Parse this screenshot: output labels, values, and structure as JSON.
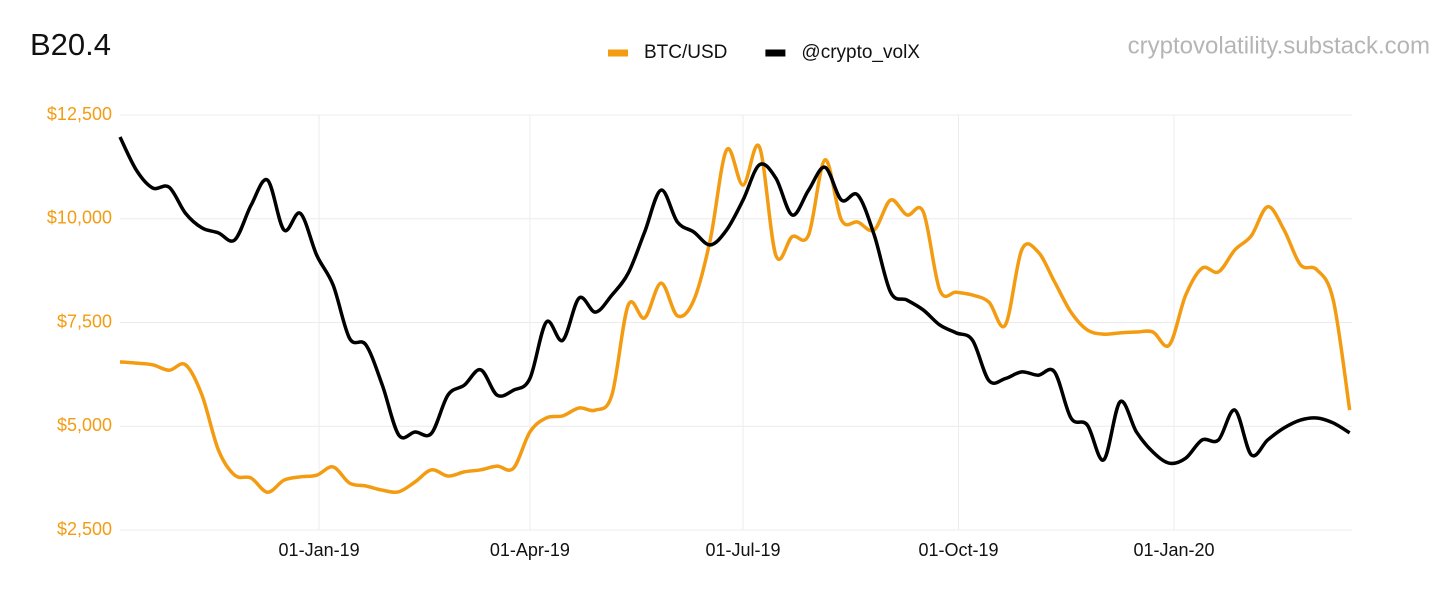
{
  "chart_data": {
    "type": "line",
    "title": "B20.4",
    "source": "cryptovolatility.substack.com",
    "legend": "top",
    "grid": true,
    "x": [
      "2018-10-08",
      "2018-10-15",
      "2018-10-22",
      "2018-10-29",
      "2018-11-05",
      "2018-11-12",
      "2018-11-19",
      "2018-11-26",
      "2018-12-03",
      "2018-12-10",
      "2018-12-17",
      "2018-12-24",
      "2018-12-31",
      "2019-01-07",
      "2019-01-14",
      "2019-01-21",
      "2019-01-28",
      "2019-02-04",
      "2019-02-11",
      "2019-02-18",
      "2019-02-25",
      "2019-03-04",
      "2019-03-11",
      "2019-03-18",
      "2019-03-25",
      "2019-04-01",
      "2019-04-08",
      "2019-04-15",
      "2019-04-22",
      "2019-04-29",
      "2019-05-06",
      "2019-05-13",
      "2019-05-20",
      "2019-05-27",
      "2019-06-03",
      "2019-06-10",
      "2019-06-17",
      "2019-06-24",
      "2019-07-01",
      "2019-07-08",
      "2019-07-15",
      "2019-07-22",
      "2019-07-29",
      "2019-08-05",
      "2019-08-12",
      "2019-08-19",
      "2019-08-26",
      "2019-09-02",
      "2019-09-09",
      "2019-09-16",
      "2019-09-23",
      "2019-09-30",
      "2019-10-07",
      "2019-10-14",
      "2019-10-21",
      "2019-10-28",
      "2019-11-04",
      "2019-11-11",
      "2019-11-18",
      "2019-11-25",
      "2019-12-02",
      "2019-12-09",
      "2019-12-16",
      "2019-12-23",
      "2019-12-30",
      "2020-01-06",
      "2020-01-13",
      "2020-01-20",
      "2020-01-27",
      "2020-02-03",
      "2020-02-10",
      "2020-02-17",
      "2020-02-24",
      "2020-03-02",
      "2020-03-09",
      "2020-03-16"
    ],
    "series": [
      {
        "name": "BTC/USD",
        "color": "#f39c12",
        "values": [
          6550,
          6520,
          6480,
          6350,
          6480,
          5750,
          4430,
          3820,
          3750,
          3410,
          3700,
          3780,
          3820,
          4020,
          3630,
          3560,
          3460,
          3420,
          3660,
          3950,
          3800,
          3900,
          3950,
          4040,
          3990,
          4860,
          5200,
          5250,
          5440,
          5390,
          5750,
          7920,
          7610,
          8450,
          7660,
          8040,
          9490,
          11660,
          10810,
          11730,
          9120,
          9570,
          9610,
          11420,
          9970,
          9920,
          9730,
          10450,
          10090,
          10160,
          8280,
          8230,
          8160,
          7990,
          7440,
          9250,
          9200,
          8480,
          7750,
          7320,
          7220,
          7250,
          7270,
          7270,
          6960,
          8160,
          8810,
          8720,
          9250,
          9590,
          10290,
          9730,
          8890,
          8770,
          8040,
          5390
        ]
      },
      {
        "name": "@crypto_volX",
        "color": "#000000",
        "values": [
          11970,
          11170,
          10740,
          10760,
          10130,
          9780,
          9660,
          9490,
          10330,
          10930,
          9730,
          10130,
          9120,
          8400,
          7120,
          6960,
          5990,
          4790,
          4860,
          4830,
          5750,
          5990,
          6360,
          5750,
          5870,
          6150,
          7510,
          7070,
          8090,
          7750,
          8160,
          8690,
          9680,
          10690,
          9920,
          9680,
          9370,
          9730,
          10450,
          11300,
          10980,
          10090,
          10690,
          11240,
          10450,
          10570,
          9610,
          8230,
          8040,
          7800,
          7440,
          7250,
          7070,
          6100,
          6150,
          6310,
          6230,
          6310,
          5200,
          5030,
          4190,
          5590,
          4860,
          4380,
          4110,
          4230,
          4670,
          4670,
          5390,
          4310,
          4670,
          4960,
          5150,
          5200,
          5080,
          4840
        ]
      }
    ],
    "xlim": [
      "2018-10-08",
      "2020-03-17"
    ],
    "xticks": [
      {
        "value": "2019-01-01",
        "label": "01-Jan-19"
      },
      {
        "value": "2019-04-01",
        "label": "01-Apr-19"
      },
      {
        "value": "2019-07-01",
        "label": "01-Jul-19"
      },
      {
        "value": "2019-10-01",
        "label": "01-Oct-19"
      },
      {
        "value": "2020-01-01",
        "label": "01-Jan-20"
      }
    ],
    "ylim": [
      2500,
      12500
    ],
    "yticks": [
      {
        "value": 2500,
        "label": "$2,500"
      },
      {
        "value": 5000,
        "label": "$5,000"
      },
      {
        "value": 7500,
        "label": "$7,500"
      },
      {
        "value": 10000,
        "label": "$10,000"
      },
      {
        "value": 12500,
        "label": "$12,500"
      }
    ],
    "ytick_color": "#f39c12"
  }
}
